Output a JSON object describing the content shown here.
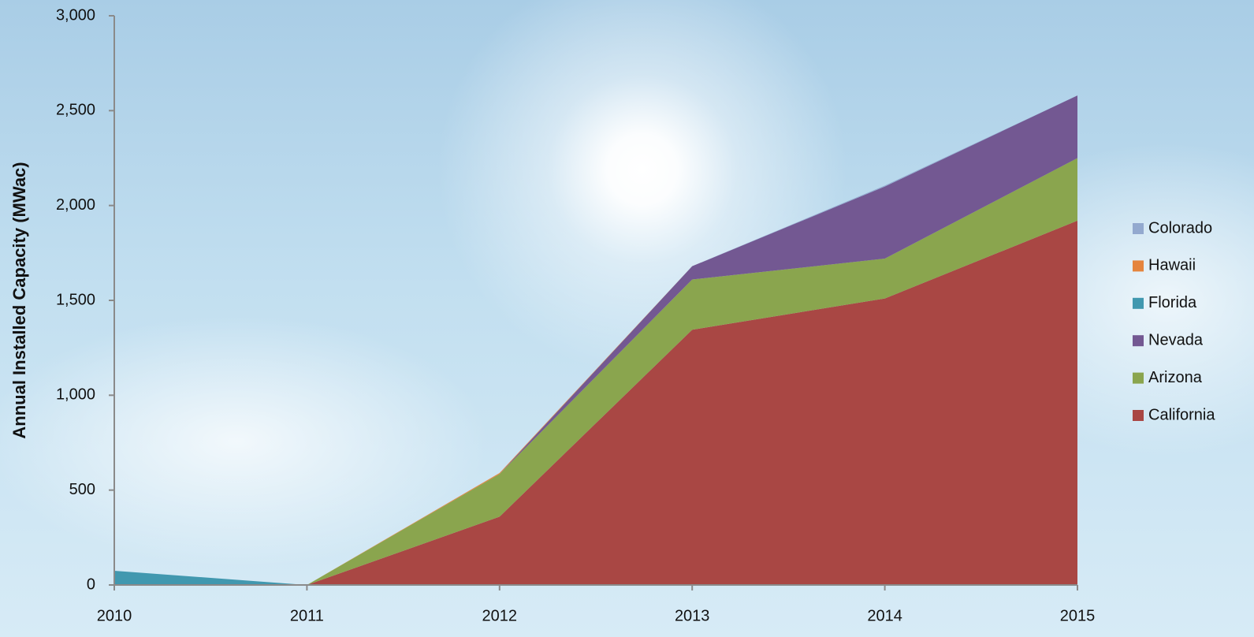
{
  "chart_data": {
    "type": "stacked_area",
    "y_label": "Annual Installed Capacity (MWac)",
    "x": [
      2010,
      2011,
      2012,
      2013,
      2014,
      2015
    ],
    "series": [
      {
        "name": "California",
        "color": "#a94744",
        "values": [
          0,
          0,
          360,
          1345,
          1510,
          1920
        ]
      },
      {
        "name": "Arizona",
        "color": "#8aa54e",
        "values": [
          0,
          0,
          225,
          265,
          210,
          330
        ]
      },
      {
        "name": "Nevada",
        "color": "#735892",
        "values": [
          0,
          0,
          0,
          70,
          380,
          330
        ]
      },
      {
        "name": "Florida",
        "color": "#4198af",
        "values": [
          75,
          0,
          0,
          0,
          0,
          0
        ]
      },
      {
        "name": "Hawaii",
        "color": "#e5843d",
        "values": [
          0,
          0,
          5,
          0,
          0,
          0
        ]
      },
      {
        "name": "Colorado",
        "color": "#93a9cf",
        "values": [
          0,
          0,
          0,
          0,
          5,
          0
        ]
      }
    ],
    "xlim": [
      2010,
      2015
    ],
    "ylim": [
      0,
      3000
    ],
    "yticks": [
      0,
      500,
      {
        "value": 1000,
        "label": "1,000"
      },
      {
        "value": 1500,
        "label": "1,500"
      },
      {
        "value": 2000,
        "label": "2,000"
      },
      {
        "value": 2500,
        "label": "2,500"
      },
      {
        "value": 3000,
        "label": "3,000"
      }
    ],
    "legend": "right"
  }
}
